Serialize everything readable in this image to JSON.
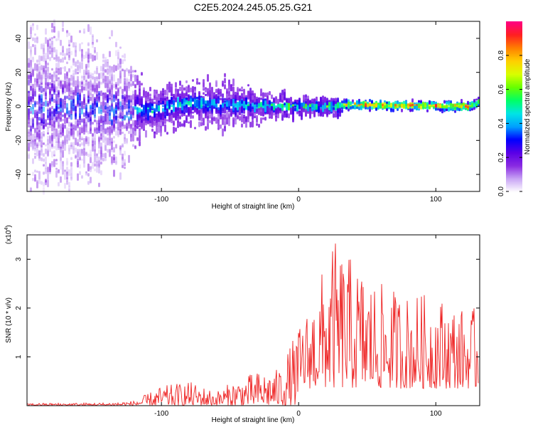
{
  "title": "C2E5.2024.245.05.25.G21",
  "chart_data": [
    {
      "type": "heatmap",
      "xlabel": "Height of straight line (km)",
      "ylabel": "Frequency (Hz)",
      "xlim": [
        -198,
        132
      ],
      "ylim": [
        -50,
        50
      ],
      "x_ticks": [
        -100,
        0,
        100
      ],
      "y_ticks": [
        -40,
        -20,
        0,
        20,
        40
      ],
      "colorbar": {
        "label": "Normalized spectral amplitude",
        "range": [
          0.0,
          1.0
        ],
        "ticks": [
          0.0,
          0.2,
          0.4,
          0.6,
          0.8
        ],
        "colors": [
          "#ffffff",
          "#c9a6f5",
          "#8a2be2",
          "#5a00e6",
          "#0000ff",
          "#00a0ff",
          "#00e5e5",
          "#00ff66",
          "#66ff00",
          "#d8ff00",
          "#ffd000",
          "#ff8000",
          "#ff2020",
          "#ff0080"
        ]
      },
      "ridge": [
        {
          "x": -198,
          "center": 0,
          "spread": 40,
          "peak": 0.3
        },
        {
          "x": -130,
          "center": -2,
          "spread": 25,
          "peak": 0.35
        },
        {
          "x": -110,
          "center": -3,
          "spread": 10,
          "peak": 0.5
        },
        {
          "x": -80,
          "center": 2,
          "spread": 10,
          "peak": 0.5
        },
        {
          "x": -55,
          "center": 1,
          "spread": 10,
          "peak": 0.45
        },
        {
          "x": -25,
          "center": 0,
          "spread": 6,
          "peak": 0.55
        },
        {
          "x": 0,
          "center": 0,
          "spread": 4,
          "peak": 0.6
        },
        {
          "x": 25,
          "center": 0,
          "spread": 4,
          "peak": 0.6
        },
        {
          "x": 35,
          "center": 1,
          "spread": 2,
          "peak": 0.85
        },
        {
          "x": 125,
          "center": 0,
          "spread": 2,
          "peak": 0.9
        },
        {
          "x": 132,
          "center": 3,
          "spread": 3,
          "peak": 0.6
        }
      ]
    },
    {
      "type": "line",
      "xlabel": "Height of straight line (km)",
      "ylabel": "SNR (10 * v/v)",
      "y_multiplier": "(x10",
      "y_multiplier_exp": "4",
      "y_multiplier_close": ")",
      "xlim": [
        -198,
        132
      ],
      "ylim": [
        0,
        3.5
      ],
      "x_ticks": [
        -100,
        0,
        100
      ],
      "y_ticks": [
        1,
        2,
        3
      ],
      "color": "#ee2222",
      "envelope": [
        {
          "x": -198,
          "y": 0.05
        },
        {
          "x": -140,
          "y": 0.06
        },
        {
          "x": -120,
          "y": 0.1
        },
        {
          "x": -100,
          "y": 0.4
        },
        {
          "x": -80,
          "y": 0.5
        },
        {
          "x": -60,
          "y": 0.3
        },
        {
          "x": -45,
          "y": 0.55
        },
        {
          "x": -30,
          "y": 0.7
        },
        {
          "x": -15,
          "y": 0.75
        },
        {
          "x": 0,
          "y": 1.6
        },
        {
          "x": 10,
          "y": 2.2
        },
        {
          "x": 20,
          "y": 3.0
        },
        {
          "x": 25,
          "y": 3.4
        },
        {
          "x": 40,
          "y": 3.0
        },
        {
          "x": 60,
          "y": 2.5
        },
        {
          "x": 80,
          "y": 2.3
        },
        {
          "x": 100,
          "y": 2.3
        },
        {
          "x": 120,
          "y": 2.0
        },
        {
          "x": 132,
          "y": 2.0
        }
      ]
    }
  ]
}
